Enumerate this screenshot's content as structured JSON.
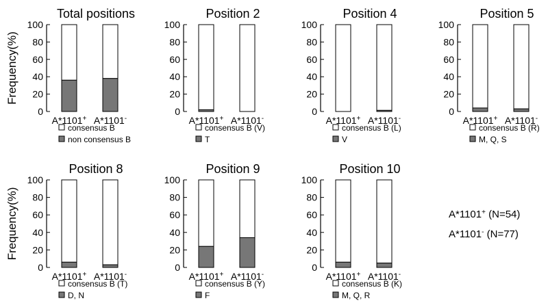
{
  "figure": {
    "ylabel": "Frequency(%)",
    "colors": {
      "consensus": "#ffffff",
      "non_consensus": "#777777",
      "stroke": "#000000"
    }
  },
  "notes": [
    {
      "base": "A*1101",
      "sign": "+",
      "text": " (N=54)"
    },
    {
      "base": "A*1101",
      "sign": "-",
      "text": " (N=77)"
    }
  ],
  "chart_data": [
    {
      "type": "bar",
      "stacked": true,
      "title": "Total positions",
      "categories": [
        {
          "base": "A*1101",
          "sign": "+"
        },
        {
          "base": "A*1101",
          "sign": "-"
        }
      ],
      "ylim": [
        0,
        100
      ],
      "yticks": [
        0,
        20,
        40,
        60,
        80,
        100
      ],
      "ylabel": "Frequency(%)",
      "series": [
        {
          "name": "consensus B",
          "values": [
            64,
            62
          ]
        },
        {
          "name": "non consensus B",
          "values": [
            36,
            38
          ]
        }
      ]
    },
    {
      "type": "bar",
      "stacked": true,
      "title": "Position 2",
      "categories": [
        {
          "base": "A*1101",
          "sign": "+"
        },
        {
          "base": "A*1101",
          "sign": "-"
        }
      ],
      "ylim": [
        0,
        100
      ],
      "yticks": [
        0,
        20,
        40,
        60,
        80,
        100
      ],
      "series": [
        {
          "name": "consensus B (V)",
          "values": [
            98,
            100
          ]
        },
        {
          "name": "T",
          "values": [
            2,
            0
          ]
        }
      ]
    },
    {
      "type": "bar",
      "stacked": true,
      "title": "Position 4",
      "categories": [
        {
          "base": "A*1101",
          "sign": "+"
        },
        {
          "base": "A*1101",
          "sign": "-"
        }
      ],
      "ylim": [
        0,
        100
      ],
      "yticks": [
        0,
        20,
        40,
        60,
        80,
        100
      ],
      "series": [
        {
          "name": "consensus B (L)",
          "values": [
            100,
            98.7
          ]
        },
        {
          "name": "V",
          "values": [
            0,
            1.3
          ]
        }
      ]
    },
    {
      "type": "bar",
      "stacked": true,
      "title": "Position 5",
      "categories": [
        {
          "base": "A*1101",
          "sign": "+"
        },
        {
          "base": "A*1101",
          "sign": "-"
        }
      ],
      "ylim": [
        0,
        100
      ],
      "yticks": [
        0,
        20,
        40,
        60,
        80,
        100
      ],
      "series": [
        {
          "name": "consensus B (R)",
          "values": [
            96,
            97
          ]
        },
        {
          "name": "M, Q, S",
          "values": [
            4,
            3
          ]
        }
      ]
    },
    {
      "type": "bar",
      "stacked": true,
      "title": "Position 8",
      "categories": [
        {
          "base": "A*1101",
          "sign": "+"
        },
        {
          "base": "A*1101",
          "sign": "-"
        }
      ],
      "ylim": [
        0,
        100
      ],
      "yticks": [
        0,
        20,
        40,
        60,
        80,
        100
      ],
      "ylabel": "Frequency(%)",
      "series": [
        {
          "name": "consensus B (T)",
          "values": [
            94,
            97
          ]
        },
        {
          "name": "D, N",
          "values": [
            6,
            3
          ]
        }
      ]
    },
    {
      "type": "bar",
      "stacked": true,
      "title": "Position 9",
      "categories": [
        {
          "base": "A*1101",
          "sign": "+"
        },
        {
          "base": "A*1101",
          "sign": "-"
        }
      ],
      "ylim": [
        0,
        100
      ],
      "yticks": [
        0,
        20,
        40,
        60,
        80,
        100
      ],
      "series": [
        {
          "name": "consensus B (Y)",
          "values": [
            76,
            66
          ]
        },
        {
          "name": "F",
          "values": [
            24,
            34
          ]
        }
      ]
    },
    {
      "type": "bar",
      "stacked": true,
      "title": "Position 10",
      "categories": [
        {
          "base": "A*1101",
          "sign": "+"
        },
        {
          "base": "A*1101",
          "sign": "-"
        }
      ],
      "ylim": [
        0,
        100
      ],
      "yticks": [
        0,
        20,
        40,
        60,
        80,
        100
      ],
      "series": [
        {
          "name": "consensus B (K)",
          "values": [
            94,
            95
          ]
        },
        {
          "name": "M, Q, R",
          "values": [
            6,
            5
          ]
        }
      ]
    }
  ]
}
